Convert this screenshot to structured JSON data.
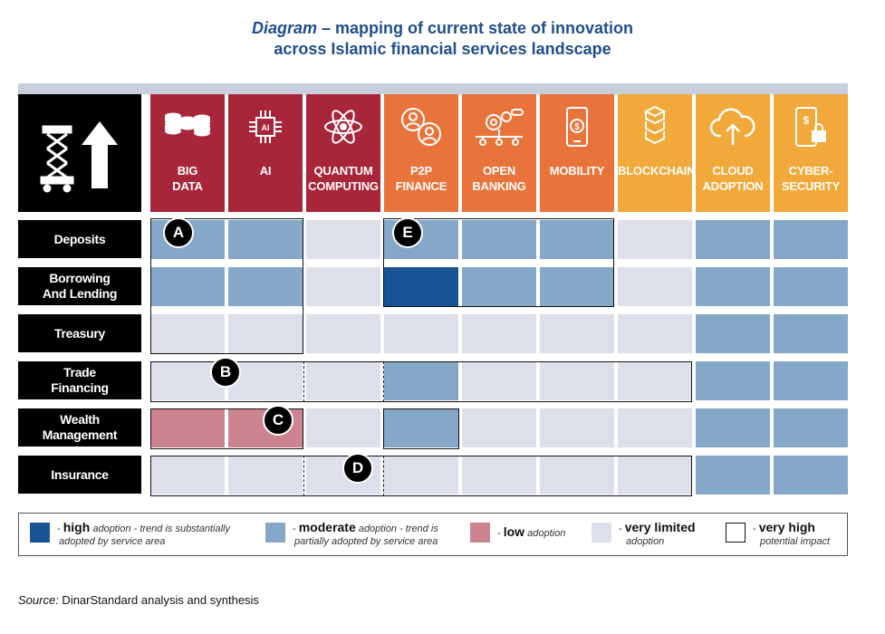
{
  "title": {
    "italic": "Diagram",
    "rest": " – mapping of current state of innovation",
    "line2": "across Islamic financial services landscape"
  },
  "columns": [
    {
      "label": "BIG\nDATA",
      "color": "#a8263a",
      "icon": "coins-stack-icon"
    },
    {
      "label": "AI",
      "color": "#a8263a",
      "icon": "ai-chip-icon"
    },
    {
      "label": "QUANTUM\nCOMPUTING",
      "color": "#a8263a",
      "icon": "atom-icon"
    },
    {
      "label": "P2P\nFINANCE",
      "color": "#e8743b",
      "icon": "p2p-users-icon"
    },
    {
      "label": "OPEN\nBANKING",
      "color": "#e8743b",
      "icon": "gears-network-icon"
    },
    {
      "label": "MOBILITY",
      "color": "#e8743b",
      "icon": "mobile-dollar-icon"
    },
    {
      "label": "BLOCKCHAIN",
      "color": "#f0a93a",
      "icon": "blocks-chain-icon"
    },
    {
      "label": "CLOUD\nADOPTION",
      "color": "#f0a93a",
      "icon": "cloud-upload-icon"
    },
    {
      "label": "CYBER-\nSECURITY",
      "color": "#f0a93a",
      "icon": "phone-lock-icon"
    }
  ],
  "rows": [
    {
      "label": "Deposits",
      "cells": [
        "moderate",
        "moderate",
        "very_limited",
        "moderate",
        "moderate",
        "moderate",
        "very_limited",
        "moderate",
        "moderate"
      ]
    },
    {
      "label": "Borrowing\nAnd Lending",
      "cells": [
        "moderate",
        "moderate",
        "very_limited",
        "high",
        "moderate",
        "moderate",
        "very_limited",
        "moderate",
        "moderate"
      ]
    },
    {
      "label": "Treasury",
      "cells": [
        "very_limited",
        "very_limited",
        "very_limited",
        "very_limited",
        "very_limited",
        "very_limited",
        "very_limited",
        "moderate",
        "moderate"
      ]
    },
    {
      "label": "Trade\nFinancing",
      "cells": [
        "very_limited",
        "very_limited",
        "very_limited",
        "moderate",
        "very_limited",
        "very_limited",
        "very_limited",
        "moderate",
        "moderate"
      ]
    },
    {
      "label": "Wealth\nManagement",
      "cells": [
        "low",
        "low",
        "very_limited",
        "moderate",
        "very_limited",
        "very_limited",
        "very_limited",
        "moderate",
        "moderate"
      ]
    },
    {
      "label": "Insurance",
      "cells": [
        "very_limited",
        "very_limited",
        "very_limited",
        "very_limited",
        "very_limited",
        "very_limited",
        "very_limited",
        "moderate",
        "moderate"
      ]
    }
  ],
  "adoption_colors": {
    "high": "#1a5394",
    "moderate": "#85a8c8",
    "low": "#cc8590",
    "very_limited": "#dde0ea"
  },
  "markers": [
    "A",
    "B",
    "C",
    "D",
    "E"
  ],
  "legend": {
    "high": {
      "bold": "high",
      "rest": " adoption - trend is  substantially",
      "line2": "adopted by service area"
    },
    "moderate": {
      "bold": "moderate",
      "rest": " adoption - trend is",
      "line2": "partially adopted by service area"
    },
    "low": {
      "bold": "low",
      "rest": " adoption"
    },
    "very_limited": {
      "bold": "very limited",
      "line2": "adoption"
    },
    "very_high": {
      "bold": "very high",
      "line2": "potential impact"
    }
  },
  "source": {
    "label": "Source:",
    "text": " DinarStandard analysis and synthesis"
  }
}
